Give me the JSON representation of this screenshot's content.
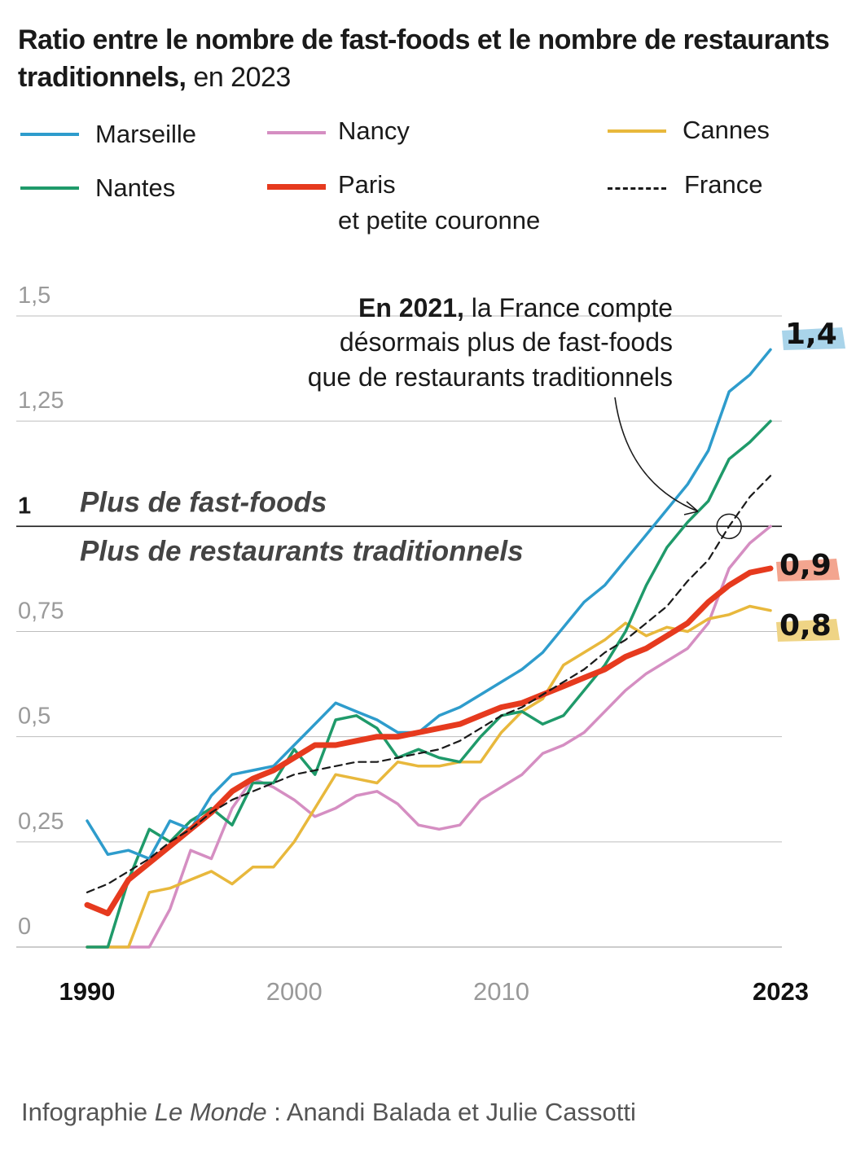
{
  "title": {
    "bold": "Ratio entre le nombre de fast-foods et le nombre de restaurants traditionnels,",
    "light": "en 2023"
  },
  "credit": {
    "prefix": "Infographie",
    "publication": "Le Monde",
    "suffix": " : Anandi Balada et Julie Cassotti"
  },
  "chart_data": {
    "type": "line",
    "x": [
      1990,
      1991,
      1992,
      1993,
      1994,
      1995,
      1996,
      1997,
      1998,
      1999,
      2000,
      2001,
      2002,
      2003,
      2004,
      2005,
      2006,
      2007,
      2008,
      2009,
      2010,
      2011,
      2012,
      2013,
      2014,
      2015,
      2016,
      2017,
      2018,
      2019,
      2020,
      2021,
      2022,
      2023
    ],
    "xlim": [
      1990,
      2023
    ],
    "ylim": [
      0,
      1.5
    ],
    "x_ticks": [
      {
        "value": 1990,
        "label": "1990",
        "bold": true
      },
      {
        "value": 2000,
        "label": "2000",
        "bold": false
      },
      {
        "value": 2010,
        "label": "2010",
        "bold": false
      },
      {
        "value": 2023,
        "label": "2023",
        "bold": true
      }
    ],
    "y_ticks": [
      {
        "value": 0,
        "label": "0"
      },
      {
        "value": 0.25,
        "label": "0,25"
      },
      {
        "value": 0.5,
        "label": "0,5"
      },
      {
        "value": 0.75,
        "label": "0,75"
      },
      {
        "value": 1,
        "label": "1"
      },
      {
        "value": 1.25,
        "label": "1,25"
      },
      {
        "value": 1.5,
        "label": "1,5"
      }
    ],
    "grid": true,
    "threshold_labels": {
      "above": "Plus de fast-foods",
      "below": "Plus de restaurants traditionnels"
    },
    "annotation": {
      "bold": "En 2021,",
      "text_line1": " la France compte",
      "text_line2": "désormais plus de fast-foods",
      "text_line3": "que de restaurants traditionnels",
      "x": 2021,
      "y": 1.0
    },
    "series": [
      {
        "name": "Marseille",
        "color": "#2e9ccc",
        "width": 3.5,
        "dashed": false,
        "values": [
          0.3,
          0.22,
          0.23,
          0.21,
          0.3,
          0.28,
          0.36,
          0.41,
          0.42,
          0.43,
          0.48,
          0.53,
          0.58,
          0.56,
          0.54,
          0.51,
          0.51,
          0.55,
          0.57,
          0.6,
          0.63,
          0.66,
          0.7,
          0.76,
          0.82,
          0.86,
          0.92,
          0.98,
          1.04,
          1.1,
          1.18,
          1.32,
          1.36,
          1.42
        ]
      },
      {
        "name": "Nantes",
        "color": "#1f9a6a",
        "width": 3.5,
        "dashed": false,
        "values": [
          0.0,
          0.0,
          0.16,
          0.28,
          0.25,
          0.3,
          0.33,
          0.29,
          0.39,
          0.39,
          0.47,
          0.41,
          0.54,
          0.55,
          0.52,
          0.45,
          0.47,
          0.45,
          0.44,
          0.5,
          0.55,
          0.56,
          0.53,
          0.55,
          0.61,
          0.67,
          0.75,
          0.86,
          0.95,
          1.01,
          1.06,
          1.16,
          1.2,
          1.25
        ]
      },
      {
        "name": "Nancy",
        "color": "#d58ec2",
        "width": 3.5,
        "dashed": false,
        "values": [
          0.0,
          0.0,
          0.0,
          0.0,
          0.09,
          0.23,
          0.21,
          0.33,
          0.4,
          0.38,
          0.35,
          0.31,
          0.33,
          0.36,
          0.37,
          0.34,
          0.29,
          0.28,
          0.29,
          0.35,
          0.38,
          0.41,
          0.46,
          0.48,
          0.51,
          0.56,
          0.61,
          0.65,
          0.68,
          0.71,
          0.77,
          0.9,
          0.96,
          1.0
        ]
      },
      {
        "name": "Cannes",
        "color": "#e8b83c",
        "width": 3.5,
        "dashed": false,
        "values": [
          0.0,
          0.0,
          0.0,
          0.13,
          0.14,
          0.16,
          0.18,
          0.15,
          0.19,
          0.19,
          0.25,
          0.33,
          0.41,
          0.4,
          0.39,
          0.44,
          0.43,
          0.43,
          0.44,
          0.44,
          0.51,
          0.56,
          0.59,
          0.67,
          0.7,
          0.73,
          0.77,
          0.74,
          0.76,
          0.75,
          0.78,
          0.79,
          0.81,
          0.8
        ]
      },
      {
        "name": "Paris",
        "sublabel": "et petite couronne",
        "color": "#e63a1e",
        "width": 7,
        "dashed": false,
        "values": [
          0.1,
          0.08,
          0.16,
          0.2,
          0.24,
          0.28,
          0.32,
          0.37,
          0.4,
          0.42,
          0.45,
          0.48,
          0.48,
          0.49,
          0.5,
          0.5,
          0.51,
          0.52,
          0.53,
          0.55,
          0.57,
          0.58,
          0.6,
          0.62,
          0.64,
          0.66,
          0.69,
          0.71,
          0.74,
          0.77,
          0.82,
          0.86,
          0.89,
          0.9
        ]
      },
      {
        "name": "France",
        "color": "#1a1a1a",
        "width": 2.2,
        "dashed": true,
        "values": [
          0.13,
          0.15,
          0.18,
          0.21,
          0.25,
          0.28,
          0.32,
          0.35,
          0.37,
          0.39,
          0.41,
          0.42,
          0.43,
          0.44,
          0.44,
          0.45,
          0.46,
          0.47,
          0.49,
          0.52,
          0.55,
          0.57,
          0.6,
          0.63,
          0.66,
          0.7,
          0.73,
          0.77,
          0.81,
          0.87,
          0.92,
          1.0,
          1.07,
          1.12
        ]
      }
    ],
    "end_labels": [
      {
        "series": "Marseille",
        "label": "1,4",
        "bg": "#a9d4ea"
      },
      {
        "series": "Paris",
        "label": "0,9",
        "bg": "#f3a58f"
      },
      {
        "series": "Cannes",
        "label": "0,8",
        "bg": "#efd485"
      }
    ]
  }
}
